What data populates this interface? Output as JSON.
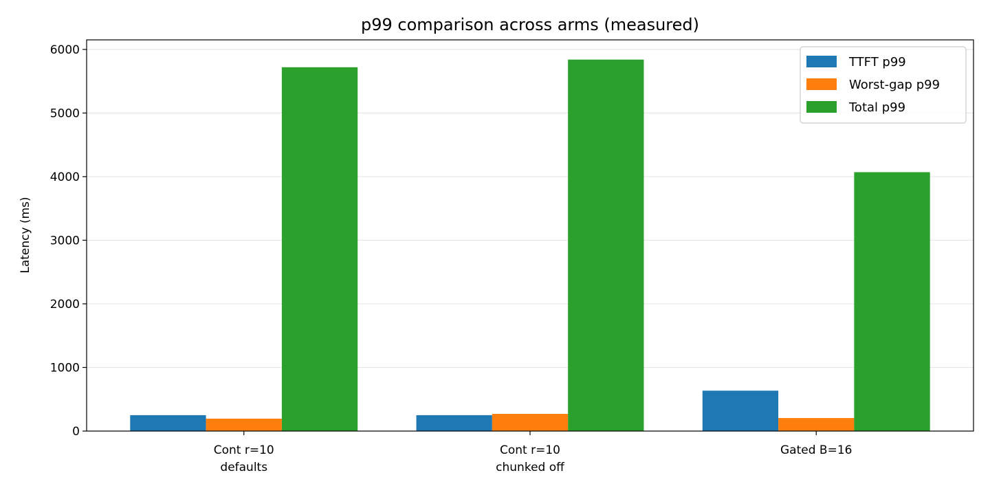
{
  "chart_data": {
    "type": "bar",
    "title": "p99 comparison across arms (measured)",
    "xlabel": "",
    "ylabel": "Latency (ms)",
    "categories": [
      [
        "Cont r=10",
        "defaults"
      ],
      [
        "Cont r=10",
        "chunked off"
      ],
      [
        "Gated B=16"
      ]
    ],
    "series": [
      {
        "name": "TTFT p99",
        "color": "#1f77b4",
        "values": [
          250,
          250,
          635
        ]
      },
      {
        "name": "Worst-gap p99",
        "color": "#ff7f0e",
        "values": [
          195,
          270,
          205
        ]
      },
      {
        "name": "Total p99",
        "color": "#2ca02c",
        "values": [
          5720,
          5840,
          4070
        ]
      }
    ],
    "ylim": [
      0,
      6150
    ],
    "yticks": [
      0,
      1000,
      2000,
      3000,
      4000,
      5000,
      6000
    ],
    "grid": "y",
    "legend_position": "top-right"
  }
}
